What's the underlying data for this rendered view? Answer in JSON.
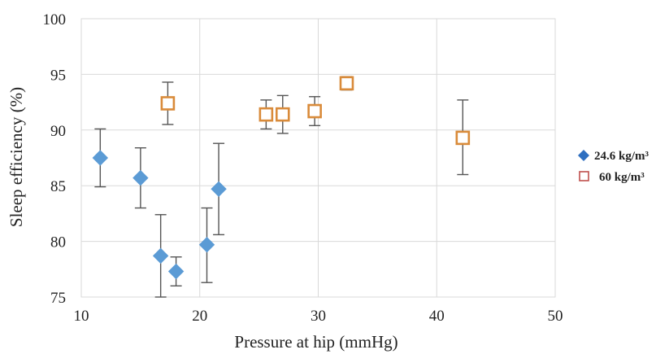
{
  "chart_data": {
    "type": "scatter",
    "title": "",
    "xlabel": "Pressure at hip (mmHg)",
    "ylabel": "Sleep efficiency (%)",
    "xlim": [
      10,
      50
    ],
    "ylim": [
      75,
      100
    ],
    "xticks": [
      "10",
      "20",
      "30",
      "40",
      "50"
    ],
    "yticks": [
      "75",
      "80",
      "85",
      "90",
      "95",
      "100"
    ],
    "grid": true,
    "legend_position": "right",
    "series": [
      {
        "name": "24.6 kg/m³",
        "marker": "diamond",
        "color": "#5b9bd5",
        "points": [
          {
            "x": 11.6,
            "y": 87.5,
            "err_low": 84.9,
            "err_high": 90.1
          },
          {
            "x": 15.0,
            "y": 85.7,
            "err_low": 83.0,
            "err_high": 88.4
          },
          {
            "x": 16.7,
            "y": 78.7,
            "err_low": 75.0,
            "err_high": 82.4
          },
          {
            "x": 18.0,
            "y": 77.3,
            "err_low": 76.0,
            "err_high": 78.6
          },
          {
            "x": 20.6,
            "y": 79.7,
            "err_low": 76.3,
            "err_high": 83.0
          },
          {
            "x": 21.6,
            "y": 84.7,
            "err_low": 80.6,
            "err_high": 88.8
          }
        ]
      },
      {
        "name": "60 kg/m³",
        "marker": "square-open",
        "color": "#d98b3a",
        "points": [
          {
            "x": 17.3,
            "y": 92.4,
            "err_low": 90.5,
            "err_high": 94.3
          },
          {
            "x": 25.6,
            "y": 91.4,
            "err_low": 90.1,
            "err_high": 92.7
          },
          {
            "x": 27.0,
            "y": 91.4,
            "err_low": 89.7,
            "err_high": 93.1
          },
          {
            "x": 29.7,
            "y": 91.7,
            "err_low": 90.4,
            "err_high": 93.0
          },
          {
            "x": 32.4,
            "y": 94.2,
            "err_low": 93.6,
            "err_high": 94.8
          },
          {
            "x": 42.2,
            "y": 89.3,
            "err_low": 86.0,
            "err_high": 92.7
          }
        ]
      }
    ]
  }
}
